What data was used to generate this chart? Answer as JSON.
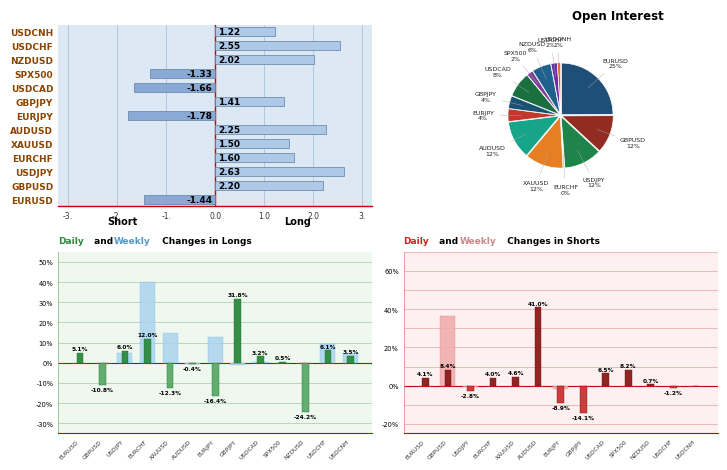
{
  "bar_labels": [
    "EURUSD",
    "GBPUSD",
    "USDJPY",
    "EURCHF",
    "XAUUSD",
    "AUDUSD",
    "EURJPY",
    "GBPJPY",
    "USDCAD",
    "SPX500",
    "NZDUSD",
    "USDCHF",
    "USDCNH"
  ],
  "bar_values": [
    -1.44,
    2.2,
    2.63,
    1.6,
    1.5,
    2.25,
    -1.78,
    1.41,
    -1.66,
    -1.33,
    2.02,
    2.55,
    1.22
  ],
  "pie_labels": [
    "EURUSD",
    "GBPUSD",
    "USDJPY",
    "EURCHF",
    "XAUUSD",
    "AUDUSD",
    "EURJPY",
    "GBPJPY",
    "USDCAD",
    "SPX500",
    "NZDUSD",
    "USDCHF",
    "USDCNH"
  ],
  "pie_values": [
    25,
    12,
    12,
    0,
    12,
    12,
    4,
    4,
    8,
    2,
    6,
    2,
    1
  ],
  "pie_colors": [
    "#1f4e79",
    "#922b21",
    "#1e8449",
    "#6d9eeb",
    "#e67e22",
    "#17a589",
    "#c0392b",
    "#1a5276",
    "#196f3d",
    "#7d3c98",
    "#1f618d",
    "#6e2fa3",
    "#e74c3c"
  ],
  "pie_title": "Open Interest",
  "longs_categories": [
    "EURUSD",
    "GBPUSD",
    "USDJPY",
    "EURCHF",
    "XAUUSD",
    "AUDUSD",
    "EURJPY",
    "GBPJPY",
    "USDCAD",
    "SPX500",
    "NZDUSD",
    "USDCHF",
    "USDCNH"
  ],
  "longs_daily": [
    5.1,
    -10.8,
    6.0,
    12.0,
    -12.3,
    -0.4,
    -16.4,
    31.8,
    3.2,
    0.5,
    -24.2,
    6.1,
    3.5
  ],
  "longs_weekly": [
    0.0,
    -0.2,
    5.0,
    40.0,
    15.0,
    -0.6,
    13.0,
    -1.0,
    0.2,
    0.0,
    0.0,
    9.5,
    5.0
  ],
  "shorts_categories": [
    "EURUSD",
    "GBPUSD",
    "USDJPY",
    "EURCHF",
    "XAUUSD",
    "AUDUSD",
    "EURJPY",
    "GBPJPY",
    "USDCAD",
    "SPX500",
    "NZDUSD",
    "USDCHF",
    "USDCNH"
  ],
  "shorts_daily": [
    4.1,
    8.4,
    -2.8,
    4.0,
    4.6,
    41.0,
    -8.9,
    -14.1,
    6.5,
    8.2,
    0.7,
    -1.2,
    0.0
  ],
  "shorts_weekly": [
    0.0,
    36.3,
    -0.5,
    0.0,
    0.0,
    0.0,
    -2.0,
    0.0,
    0.0,
    0.0,
    0.0,
    0.0,
    0.0
  ],
  "bg_color": "#ffffff"
}
